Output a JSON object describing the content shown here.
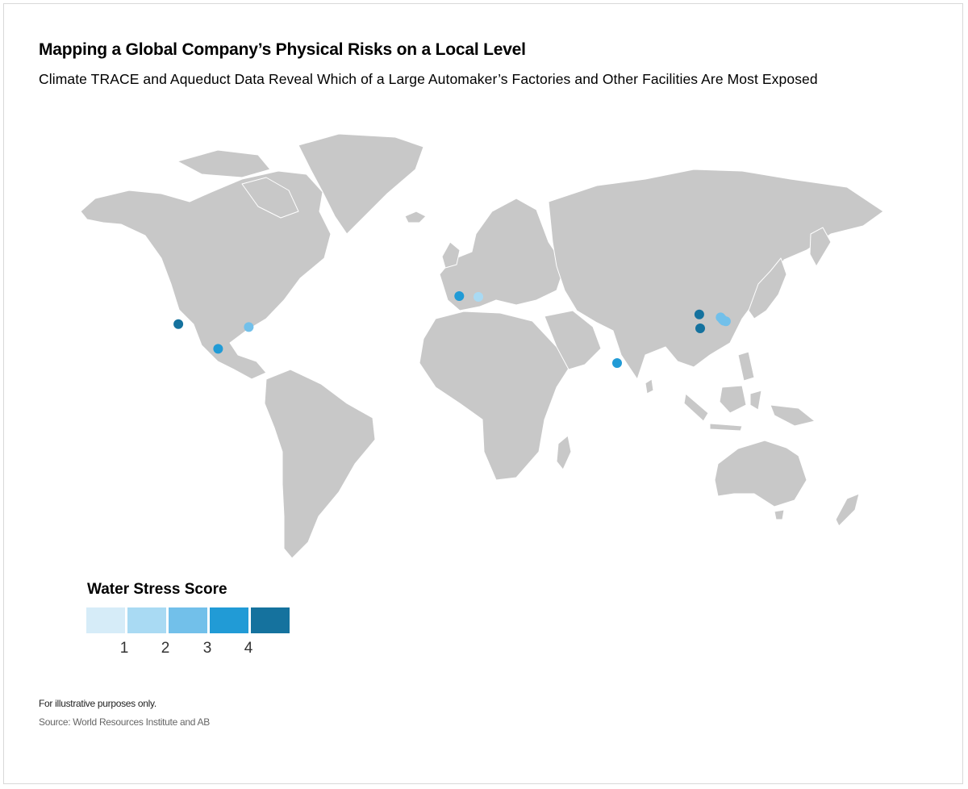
{
  "title": "Mapping a Global Company’s Physical Risks on a Local Level",
  "subtitle": "Climate TRACE and Aqueduct Data Reveal Which of a Large Automaker’s Factories and Other Facilities Are Most Exposed",
  "legend": {
    "title": "Water Stress Score",
    "colors": [
      "#d6ecf8",
      "#a9daf3",
      "#72c0ea",
      "#219bd6",
      "#15729e"
    ],
    "tick_labels": [
      "1",
      "2",
      "3",
      "4"
    ]
  },
  "land_color": "#c8c8c8",
  "facilities": [
    {
      "name": "",
      "lon": -117.2,
      "lat": 33.9,
      "score_level": 5
    },
    {
      "name": "",
      "lon": -99.3,
      "lat": 20.6,
      "score_level": 4
    },
    {
      "name": "",
      "lon": -85.5,
      "lat": 32.3,
      "score_level": 3
    },
    {
      "name": "",
      "lon": 9.2,
      "lat": 48.9,
      "score_level": 4
    },
    {
      "name": "",
      "lon": 17.8,
      "lat": 48.5,
      "score_level": 2
    },
    {
      "name": "",
      "lon": 80.2,
      "lat": 13.0,
      "score_level": 4
    },
    {
      "name": "",
      "lon": 117.2,
      "lat": 39.1,
      "score_level": 5
    },
    {
      "name": "",
      "lon": 117.6,
      "lat": 31.6,
      "score_level": 5
    },
    {
      "name": "",
      "lon": 126.8,
      "lat": 37.5,
      "score_level": 3
    },
    {
      "name": "",
      "lon": 127.6,
      "lat": 36.4,
      "score_level": 3
    },
    {
      "name": "",
      "lon": 128.2,
      "lat": 35.7,
      "score_level": 3
    },
    {
      "name": "",
      "lon": 129.2,
      "lat": 35.4,
      "score_level": 3
    }
  ],
  "note": "For illustrative purposes only.",
  "source": "Source: World Resources Institute and AB"
}
